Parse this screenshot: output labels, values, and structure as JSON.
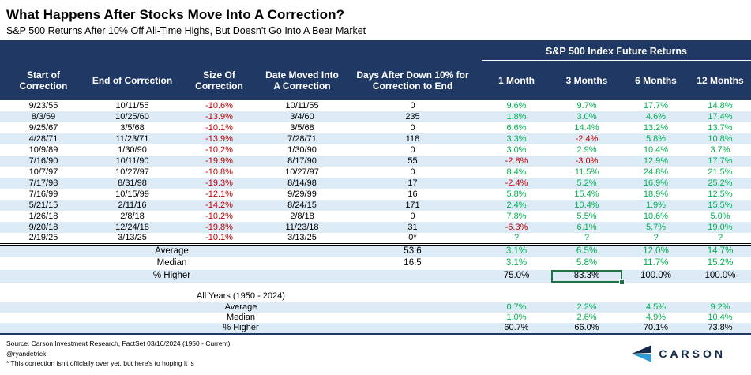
{
  "title": "What Happens After Stocks Move Into A Correction?",
  "subtitle": "S&P 500 Returns After 10% Off All-Time Highs, But Doesn't Go Into A Bear Market",
  "chart_data": {
    "type": "table",
    "title": "What Happens After Stocks Move Into A Correction?",
    "subtitle": "S&P 500 Returns After 10% Off All-Time Highs, But Doesn't Go Into A Bear Market",
    "group_header": "S&P 500 Index Future Returns",
    "columns": [
      "Start of Correction",
      "End of Correction",
      "Size Of Correction",
      "Date Moved Into A Correction",
      "Days After Down 10% for Correction to End",
      "1 Month",
      "3 Months",
      "6 Months",
      "12 Months"
    ],
    "rows": [
      [
        "9/23/55",
        "10/11/55",
        "-10.6%",
        "10/11/55",
        "0",
        "9.6%",
        "9.7%",
        "17.7%",
        "14.8%"
      ],
      [
        "8/3/59",
        "10/25/60",
        "-13.9%",
        "3/4/60",
        "235",
        "1.8%",
        "3.0%",
        "4.6%",
        "17.4%"
      ],
      [
        "9/25/67",
        "3/5/68",
        "-10.1%",
        "3/5/68",
        "0",
        "6.6%",
        "14.4%",
        "13.2%",
        "13.7%"
      ],
      [
        "4/28/71",
        "11/23/71",
        "-13.9%",
        "7/28/71",
        "118",
        "3.3%",
        "-2.4%",
        "5.8%",
        "10.8%"
      ],
      [
        "10/9/89",
        "1/30/90",
        "-10.2%",
        "1/30/90",
        "0",
        "3.0%",
        "2.9%",
        "10.4%",
        "3.7%"
      ],
      [
        "7/16/90",
        "10/11/90",
        "-19.9%",
        "8/17/90",
        "55",
        "-2.8%",
        "-3.0%",
        "12.9%",
        "17.7%"
      ],
      [
        "10/7/97",
        "10/27/97",
        "-10.8%",
        "10/27/97",
        "0",
        "8.4%",
        "11.5%",
        "24.8%",
        "21.5%"
      ],
      [
        "7/17/98",
        "8/31/98",
        "-19.3%",
        "8/14/98",
        "17",
        "-2.4%",
        "5.2%",
        "16.9%",
        "25.2%"
      ],
      [
        "7/16/99",
        "10/15/99",
        "-12.1%",
        "9/29/99",
        "16",
        "5.8%",
        "15.4%",
        "18.9%",
        "12.5%"
      ],
      [
        "5/21/15",
        "2/11/16",
        "-14.2%",
        "8/24/15",
        "171",
        "2.4%",
        "10.4%",
        "1.9%",
        "15.5%"
      ],
      [
        "1/26/18",
        "2/8/18",
        "-10.2%",
        "2/8/18",
        "0",
        "7.8%",
        "5.5%",
        "10.6%",
        "5.0%"
      ],
      [
        "9/20/18",
        "12/24/18",
        "-19.8%",
        "11/23/18",
        "31",
        "-6.3%",
        "6.1%",
        "5.7%",
        "19.0%"
      ],
      [
        "2/19/25",
        "3/13/25",
        "-10.1%",
        "3/13/25",
        "0*",
        "?",
        "?",
        "?",
        "?"
      ]
    ],
    "summary_rows": [
      {
        "label": "Average",
        "days": "53.6",
        "returns": [
          "3.1%",
          "6.5%",
          "12.0%",
          "14.7%"
        ]
      },
      {
        "label": "Median",
        "days": "16.5",
        "returns": [
          "3.1%",
          "5.8%",
          "11.7%",
          "15.2%"
        ]
      },
      {
        "label": "% Higher",
        "days": "",
        "returns": [
          "75.0%",
          "83.3%",
          "100.0%",
          "100.0%"
        ]
      }
    ],
    "selected_cell": {
      "row": "% Higher",
      "column": "3 Months",
      "value": "83.3%"
    },
    "all_years": {
      "label": "All Years (1950 - 2024)",
      "rows": [
        {
          "label": "Average",
          "returns": [
            "0.7%",
            "2.2%",
            "4.5%",
            "9.2%"
          ]
        },
        {
          "label": "Median",
          "returns": [
            "1.0%",
            "2.6%",
            "4.9%",
            "10.4%"
          ]
        },
        {
          "label": "% Higher",
          "returns": [
            "60.7%",
            "66.0%",
            "70.1%",
            "73.8%"
          ]
        }
      ]
    }
  },
  "footer": {
    "source": "Source: Carson Investment Research, FactSet 03/16/2024 (1950 - Current)",
    "handle": "@ryandetrick",
    "note": "* This correction isn't officially over yet, but here's to hoping it is",
    "logo_text": "CARSON"
  },
  "colors": {
    "header_navy": "#1F3864",
    "row_alt_blue": "#DDEBF7",
    "positive_green": "#00B050",
    "negative_red": "#C00000",
    "selection_green": "#217346",
    "logo_navy": "#13294B",
    "logo_blue": "#2E9BD6"
  }
}
